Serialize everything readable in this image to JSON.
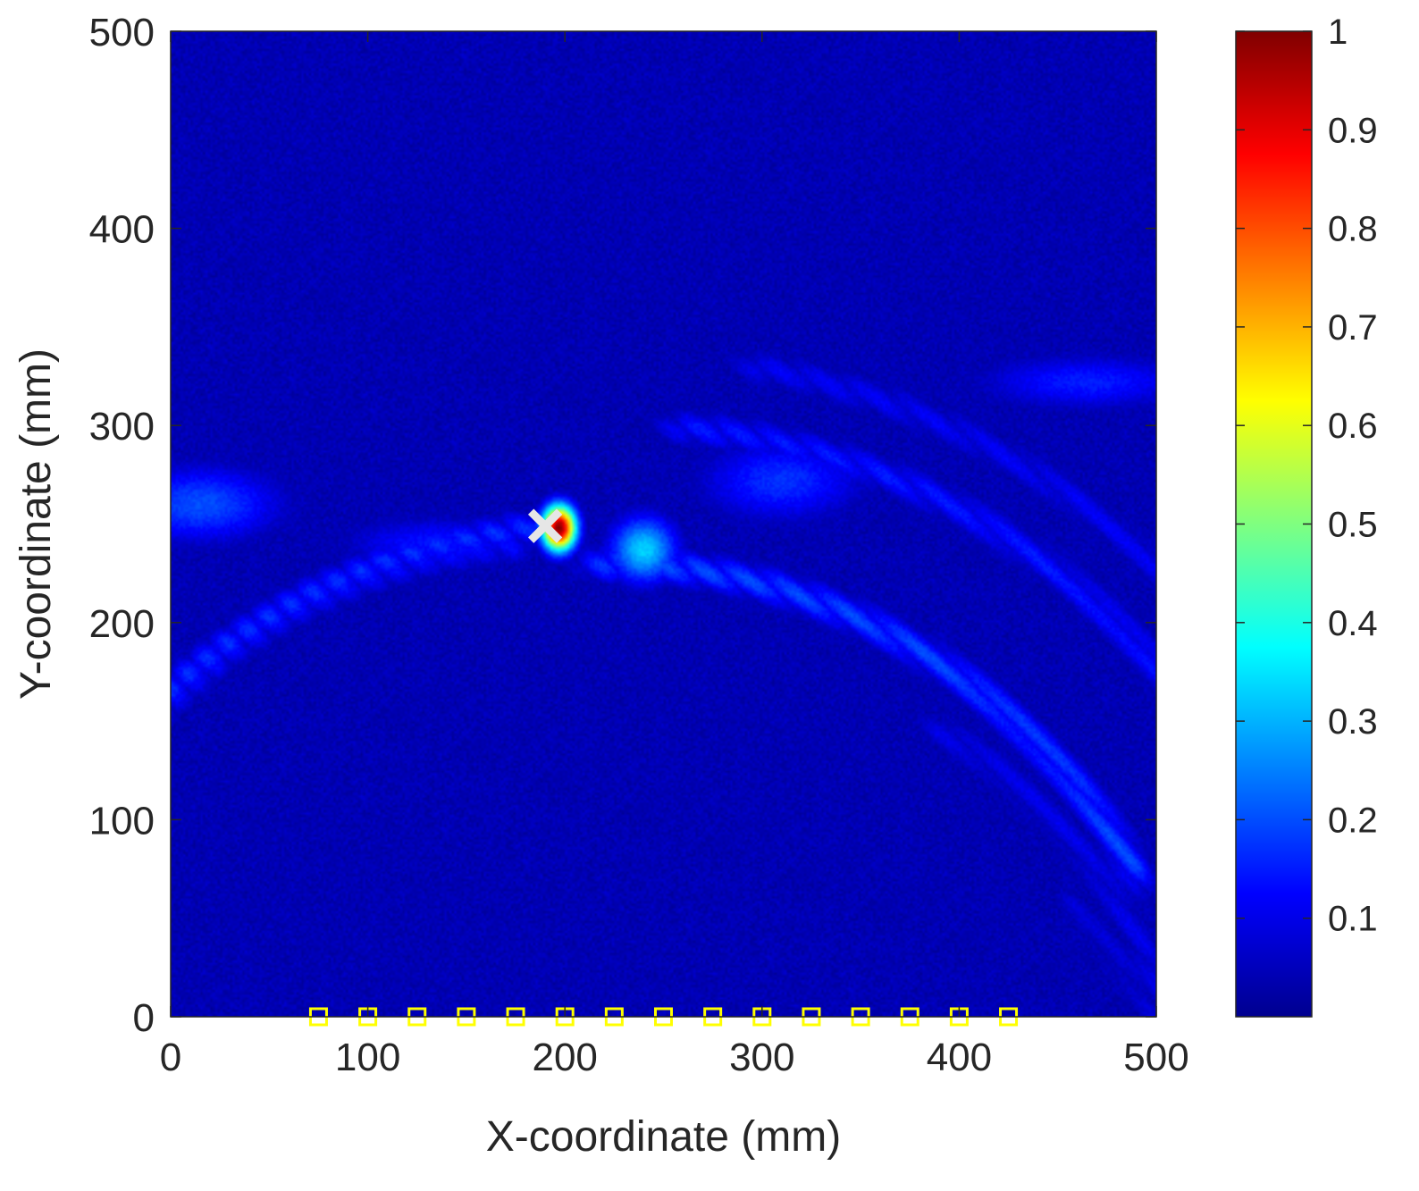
{
  "chart_data": {
    "type": "heatmap",
    "title": "",
    "xlabel": "X-coordinate (mm)",
    "ylabel": "Y-coordinate (mm)",
    "xlim": [
      0,
      500
    ],
    "ylim": [
      0,
      500
    ],
    "xticks": [
      "0",
      "100",
      "200",
      "300",
      "400",
      "500"
    ],
    "yticks": [
      "0",
      "100",
      "200",
      "300",
      "400",
      "500"
    ],
    "colormap": "jet",
    "colorbar": {
      "range": [
        0,
        1
      ],
      "ticks": [
        "0.1",
        "0.2",
        "0.3",
        "0.4",
        "0.5",
        "0.6",
        "0.7",
        "0.8",
        "0.9",
        "1"
      ]
    },
    "peak": {
      "x": 197,
      "y": 248,
      "value": 1.0
    },
    "marker_cross": {
      "x": 190,
      "y": 249,
      "color": "#e6e6e6"
    },
    "sensor_markers": {
      "color": "#ffff00",
      "y": 0,
      "x": [
        75,
        100,
        125,
        150,
        175,
        200,
        225,
        250,
        275,
        300,
        325,
        350,
        375,
        400,
        425
      ]
    },
    "background_level": 0.05,
    "features": [
      {
        "kind": "arc",
        "cx": 220,
        "cy": -80,
        "r": 330,
        "a0": 95,
        "a1": 175,
        "level": 0.17
      },
      {
        "kind": "arc",
        "cx": 220,
        "cy": -80,
        "r": 310,
        "a0": 30,
        "a1": 90,
        "level": 0.2
      },
      {
        "kind": "arc",
        "cx": 230,
        "cy": -60,
        "r": 360,
        "a0": 15,
        "a1": 85,
        "level": 0.15
      },
      {
        "kind": "arc",
        "cx": 230,
        "cy": -60,
        "r": 395,
        "a0": 20,
        "a1": 80,
        "level": 0.12
      },
      {
        "kind": "arc",
        "cx": 200,
        "cy": -50,
        "r": 290,
        "a0": 95,
        "a1": 160,
        "level": 0.13
      },
      {
        "kind": "arc",
        "cx": 260,
        "cy": -80,
        "r": 260,
        "a0": 10,
        "a1": 60,
        "level": 0.11
      },
      {
        "kind": "arc",
        "cx": 280,
        "cy": -120,
        "r": 250,
        "a0": 5,
        "a1": 45,
        "level": 0.09
      },
      {
        "kind": "blob",
        "x": 15,
        "y": 260,
        "sx": 30,
        "sy": 14,
        "level": 0.2
      },
      {
        "kind": "blob",
        "x": 240,
        "y": 237,
        "sx": 12,
        "sy": 12,
        "level": 0.33
      },
      {
        "kind": "blob",
        "x": 310,
        "y": 272,
        "sx": 30,
        "sy": 15,
        "level": 0.17
      },
      {
        "kind": "blob",
        "x": 465,
        "y": 322,
        "sx": 40,
        "sy": 10,
        "level": 0.15
      },
      {
        "kind": "blob",
        "x": 135,
        "y": 240,
        "sx": 35,
        "sy": 10,
        "level": 0.14
      },
      {
        "kind": "blob",
        "x": 197,
        "y": 248,
        "sx": 6,
        "sy": 8,
        "level": 1.0
      }
    ]
  }
}
